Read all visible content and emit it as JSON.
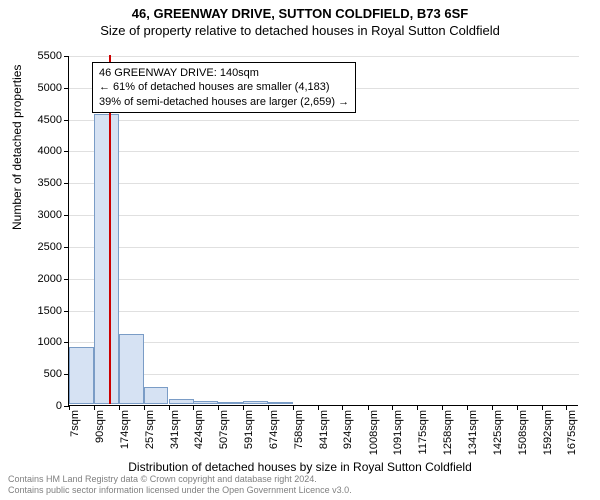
{
  "title": "46, GREENWAY DRIVE, SUTTON COLDFIELD, B73 6SF",
  "subtitle": "Size of property relative to detached houses in Royal Sutton Coldfield",
  "ylabel": "Number of detached properties",
  "xlabel": "Distribution of detached houses by size in Royal Sutton Coldfield",
  "annotation": {
    "line1": "46 GREENWAY DRIVE: 140sqm",
    "line2": "← 61% of detached houses are smaller (4,183)",
    "line3": "39% of semi-detached houses are larger (2,659) →"
  },
  "footer_line1": "Contains HM Land Registry data © Crown copyright and database right 2024.",
  "footer_line2": "Contains public sector information licensed under the Open Government Licence v3.0.",
  "chart": {
    "type": "histogram",
    "x_start": 7,
    "x_end": 1717,
    "x_step": 83.5,
    "x_unit": "sqm",
    "y_max": 5500,
    "y_tick_step": 500,
    "bar_color": "#d6e2f3",
    "bar_border": "#7a9cc6",
    "grid_color": "#e0e0e0",
    "marker_color": "#cc0000",
    "marker_x": 140,
    "background": "#ffffff",
    "xtick_rotation_deg": -90,
    "title_fontsize": 13,
    "label_fontsize": 12,
    "tick_fontsize": 11,
    "bars": [
      {
        "x0": 7,
        "count": 900
      },
      {
        "x0": 90,
        "count": 4550
      },
      {
        "x0": 174,
        "count": 1100
      },
      {
        "x0": 257,
        "count": 270
      },
      {
        "x0": 341,
        "count": 80
      },
      {
        "x0": 424,
        "count": 40
      },
      {
        "x0": 507,
        "count": 20
      },
      {
        "x0": 591,
        "count": 40
      },
      {
        "x0": 674,
        "count": 20
      },
      {
        "x0": 758,
        "count": 0
      },
      {
        "x0": 841,
        "count": 0
      },
      {
        "x0": 924,
        "count": 0
      },
      {
        "x0": 1008,
        "count": 0
      },
      {
        "x0": 1091,
        "count": 0
      },
      {
        "x0": 1175,
        "count": 0
      },
      {
        "x0": 1258,
        "count": 0
      },
      {
        "x0": 1341,
        "count": 0
      },
      {
        "x0": 1425,
        "count": 0
      },
      {
        "x0": 1508,
        "count": 0
      },
      {
        "x0": 1592,
        "count": 0
      }
    ],
    "xticks": [
      7,
      90,
      174,
      257,
      341,
      424,
      507,
      591,
      674,
      758,
      841,
      924,
      1008,
      1091,
      1175,
      1258,
      1341,
      1425,
      1508,
      1592,
      1675
    ]
  }
}
